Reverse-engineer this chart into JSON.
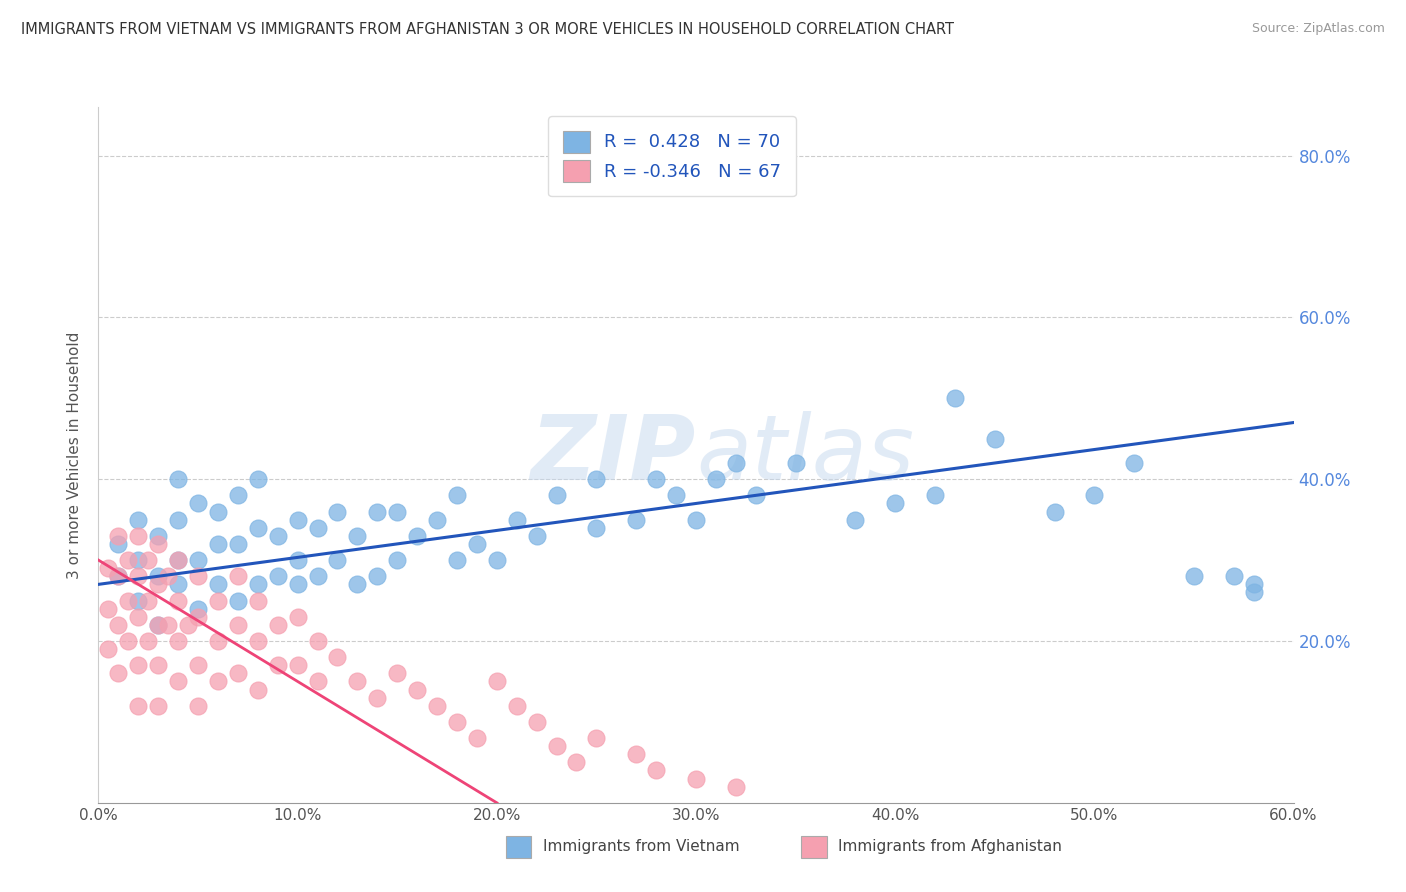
{
  "title": "IMMIGRANTS FROM VIETNAM VS IMMIGRANTS FROM AFGHANISTAN 3 OR MORE VEHICLES IN HOUSEHOLD CORRELATION CHART",
  "source": "Source: ZipAtlas.com",
  "ylabel": "3 or more Vehicles in Household",
  "xlabel_blue": "Immigrants from Vietnam",
  "xlabel_pink": "Immigrants from Afghanistan",
  "legend_blue_R": "0.428",
  "legend_blue_N": "70",
  "legend_pink_R": "-0.346",
  "legend_pink_N": "67",
  "blue_color": "#7EB4E3",
  "pink_color": "#F5A0B0",
  "blue_line_color": "#2255BB",
  "pink_line_color": "#EE4477",
  "watermark_color": "#C5D8EE",
  "xmin": 0.0,
  "xmax": 0.6,
  "ymin": 0.0,
  "ymax": 0.86,
  "blue_line_x0": 0.0,
  "blue_line_y0": 0.27,
  "blue_line_x1": 0.6,
  "blue_line_y1": 0.47,
  "pink_line_x0": 0.0,
  "pink_line_y0": 0.3,
  "pink_line_x1": 0.2,
  "pink_line_y1": 0.0,
  "blue_scatter_x": [
    0.01,
    0.01,
    0.02,
    0.02,
    0.02,
    0.03,
    0.03,
    0.03,
    0.04,
    0.04,
    0.04,
    0.04,
    0.05,
    0.05,
    0.05,
    0.06,
    0.06,
    0.06,
    0.07,
    0.07,
    0.07,
    0.08,
    0.08,
    0.08,
    0.09,
    0.09,
    0.1,
    0.1,
    0.1,
    0.11,
    0.11,
    0.12,
    0.12,
    0.13,
    0.13,
    0.14,
    0.14,
    0.15,
    0.15,
    0.16,
    0.17,
    0.18,
    0.18,
    0.19,
    0.2,
    0.21,
    0.22,
    0.23,
    0.25,
    0.25,
    0.27,
    0.28,
    0.29,
    0.3,
    0.31,
    0.32,
    0.33,
    0.35,
    0.38,
    0.4,
    0.42,
    0.43,
    0.45,
    0.48,
    0.5,
    0.52,
    0.55,
    0.57,
    0.58,
    0.58
  ],
  "blue_scatter_y": [
    0.28,
    0.32,
    0.25,
    0.3,
    0.35,
    0.22,
    0.28,
    0.33,
    0.27,
    0.3,
    0.35,
    0.4,
    0.24,
    0.3,
    0.37,
    0.27,
    0.32,
    0.36,
    0.25,
    0.32,
    0.38,
    0.27,
    0.34,
    0.4,
    0.28,
    0.33,
    0.27,
    0.3,
    0.35,
    0.28,
    0.34,
    0.3,
    0.36,
    0.27,
    0.33,
    0.28,
    0.36,
    0.3,
    0.36,
    0.33,
    0.35,
    0.3,
    0.38,
    0.32,
    0.3,
    0.35,
    0.33,
    0.38,
    0.34,
    0.4,
    0.35,
    0.4,
    0.38,
    0.35,
    0.4,
    0.42,
    0.38,
    0.42,
    0.35,
    0.37,
    0.38,
    0.5,
    0.45,
    0.36,
    0.38,
    0.42,
    0.28,
    0.28,
    0.27,
    0.26
  ],
  "pink_scatter_x": [
    0.005,
    0.005,
    0.005,
    0.01,
    0.01,
    0.01,
    0.01,
    0.015,
    0.015,
    0.015,
    0.02,
    0.02,
    0.02,
    0.02,
    0.02,
    0.025,
    0.025,
    0.025,
    0.03,
    0.03,
    0.03,
    0.03,
    0.03,
    0.035,
    0.035,
    0.04,
    0.04,
    0.04,
    0.04,
    0.045,
    0.05,
    0.05,
    0.05,
    0.05,
    0.06,
    0.06,
    0.06,
    0.07,
    0.07,
    0.07,
    0.08,
    0.08,
    0.08,
    0.09,
    0.09,
    0.1,
    0.1,
    0.11,
    0.11,
    0.12,
    0.13,
    0.14,
    0.15,
    0.16,
    0.17,
    0.18,
    0.19,
    0.2,
    0.21,
    0.22,
    0.23,
    0.24,
    0.25,
    0.27,
    0.28,
    0.3,
    0.32
  ],
  "pink_scatter_y": [
    0.29,
    0.24,
    0.19,
    0.33,
    0.28,
    0.22,
    0.16,
    0.3,
    0.25,
    0.2,
    0.33,
    0.28,
    0.23,
    0.17,
    0.12,
    0.3,
    0.25,
    0.2,
    0.32,
    0.27,
    0.22,
    0.17,
    0.12,
    0.28,
    0.22,
    0.3,
    0.25,
    0.2,
    0.15,
    0.22,
    0.28,
    0.23,
    0.17,
    0.12,
    0.25,
    0.2,
    0.15,
    0.28,
    0.22,
    0.16,
    0.25,
    0.2,
    0.14,
    0.22,
    0.17,
    0.23,
    0.17,
    0.2,
    0.15,
    0.18,
    0.15,
    0.13,
    0.16,
    0.14,
    0.12,
    0.1,
    0.08,
    0.15,
    0.12,
    0.1,
    0.07,
    0.05,
    0.08,
    0.06,
    0.04,
    0.03,
    0.02
  ]
}
